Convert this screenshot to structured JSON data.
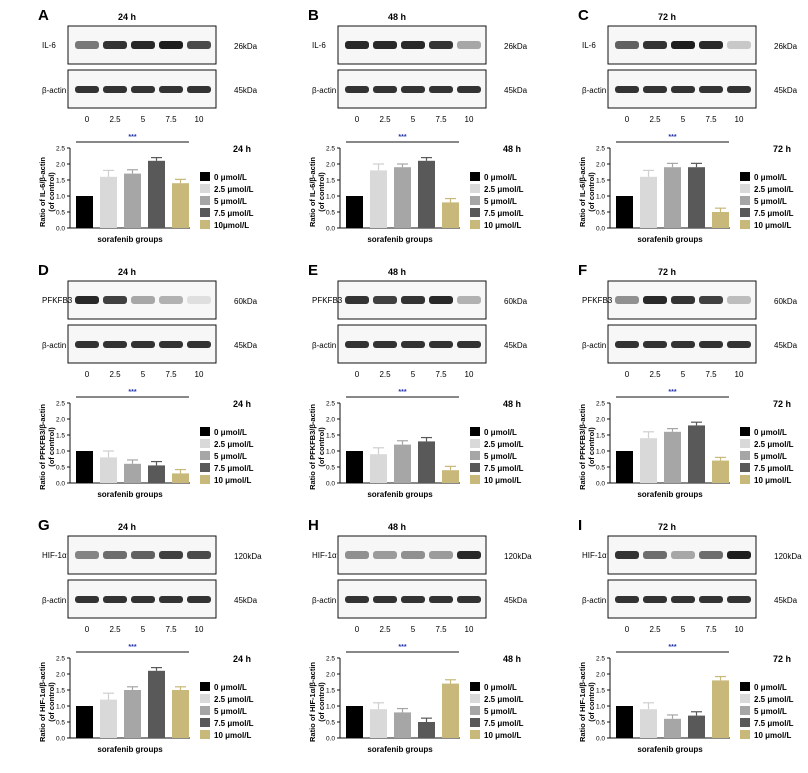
{
  "colors": [
    "#000000",
    "#d9d9d9",
    "#a6a6a6",
    "#595959",
    "#c8b87a"
  ],
  "band_colors": {
    "strong": "#111111",
    "faint": "#bdbdbd"
  },
  "common": {
    "ylabel_first_line": "(of control)",
    "xlabel": "sorafenib groups",
    "doses": [
      "0",
      "2.5",
      "5",
      "7.5",
      "10"
    ],
    "significance": "***",
    "loading_control": "β-actin",
    "loading_control_kda": "45kDa"
  },
  "chart_data": [
    {
      "panel": "A",
      "type": "bar",
      "blot_title": "24 h",
      "chart_title": "24 h",
      "protein": "IL-6",
      "kda": "26kDa",
      "ylabel": "Ratio of IL-6/β-actin",
      "xlabel": "sorafenib groups",
      "ylim": [
        0,
        2.5
      ],
      "yticks": [
        "0.0",
        "0.5",
        "1.0",
        "1.5",
        "2.0",
        "2.5"
      ],
      "categories": [
        "0 μmol/L",
        "2.5 μmol/L",
        "5 μmol/L",
        "7.5 μmol/L",
        "10μmol/L"
      ],
      "values": [
        1.0,
        1.6,
        1.7,
        2.1,
        1.4
      ],
      "errors": [
        0,
        0.2,
        0.12,
        0.1,
        0.12
      ],
      "band_intensity": [
        0.55,
        0.85,
        0.9,
        0.95,
        0.75
      ]
    },
    {
      "panel": "B",
      "type": "bar",
      "blot_title": "48 h",
      "chart_title": "48 h",
      "protein": "IL-6",
      "kda": "26kDa",
      "ylabel": "Ratio of IL-6/β-actin",
      "xlabel": "sorafenib groups",
      "ylim": [
        0,
        2.5
      ],
      "yticks": [
        "0.0",
        "0.5",
        "1.0",
        "1.5",
        "2.0",
        "2.5"
      ],
      "categories": [
        "0 μmol/L",
        "2.5 μmol/L",
        "5 μmol/L",
        "7.5 μmol/L",
        "10 μmol/L"
      ],
      "values": [
        1.0,
        1.8,
        1.9,
        2.1,
        0.8
      ],
      "errors": [
        0,
        0.2,
        0.1,
        0.1,
        0.12
      ],
      "band_intensity": [
        0.9,
        0.9,
        0.9,
        0.85,
        0.35
      ]
    },
    {
      "panel": "C",
      "type": "bar",
      "blot_title": "72 h",
      "chart_title": "72 h",
      "protein": "IL-6",
      "kda": "26kDa",
      "ylabel": "Ratio of IL-6/β-actin",
      "xlabel": "sorafenib groups",
      "ylim": [
        0,
        2.5
      ],
      "yticks": [
        "0.0",
        "0.5",
        "1.0",
        "1.5",
        "2.0",
        "2.5"
      ],
      "categories": [
        "0 μmol/L",
        "2.5 μmol/L",
        "5 μmol/L",
        "7.5 μmol/L",
        "10 μmol/L"
      ],
      "values": [
        1.0,
        1.6,
        1.9,
        1.9,
        0.5
      ],
      "errors": [
        0,
        0.2,
        0.12,
        0.12,
        0.12
      ],
      "band_intensity": [
        0.65,
        0.85,
        0.95,
        0.9,
        0.2
      ]
    },
    {
      "panel": "D",
      "type": "bar",
      "blot_title": "24 h",
      "chart_title": "24 h",
      "protein": "PFKFB3",
      "kda": "60kDa",
      "ylabel": "Ratio of PFKFB3/β-actin",
      "xlabel": "sorafenib groups",
      "ylim": [
        0,
        2.5
      ],
      "yticks": [
        "0.0",
        "0.5",
        "1.0",
        "1.5",
        "2.0",
        "2.5"
      ],
      "categories": [
        "0 μmol/L",
        "2.5 μmol/L",
        "5 μmol/L",
        "7.5 μmol/L",
        "10 μmol/L"
      ],
      "values": [
        1.0,
        0.8,
        0.6,
        0.55,
        0.3
      ],
      "errors": [
        0,
        0.2,
        0.12,
        0.12,
        0.12
      ],
      "band_intensity": [
        0.9,
        0.8,
        0.35,
        0.3,
        0.1
      ]
    },
    {
      "panel": "E",
      "type": "bar",
      "blot_title": "48 h",
      "chart_title": "48 h",
      "protein": "PFKFB3",
      "kda": "60kDa",
      "ylabel": "Ratio of PFKFB3/β-actin",
      "xlabel": "sorafenib groups",
      "ylim": [
        0,
        2.5
      ],
      "yticks": [
        "0.0",
        "0.5",
        "1.0",
        "1.5",
        "2.0",
        "2.5"
      ],
      "categories": [
        "0 μmol/L",
        "2.5 μmol/L",
        "5 μmol/L",
        "7.5 μmol/L",
        "10 μmol/L"
      ],
      "values": [
        1.0,
        0.9,
        1.2,
        1.3,
        0.4
      ],
      "errors": [
        0,
        0.2,
        0.12,
        0.12,
        0.12
      ],
      "band_intensity": [
        0.85,
        0.8,
        0.85,
        0.9,
        0.3
      ]
    },
    {
      "panel": "F",
      "type": "bar",
      "blot_title": "72 h",
      "chart_title": "72 h",
      "protein": "PFKFB3",
      "kda": "60kDa",
      "ylabel": "Ratio of PFKFB3/β-actin",
      "xlabel": "sorafenib groups",
      "ylim": [
        0,
        2.5
      ],
      "yticks": [
        "0.0",
        "0.5",
        "1.0",
        "1.5",
        "2.0",
        "2.5"
      ],
      "categories": [
        "0 μmol/L",
        "2.5 μmol/L",
        "5 μmol/L",
        "7.5 μmol/L",
        "10 μmol/L"
      ],
      "values": [
        1.0,
        1.4,
        1.6,
        1.8,
        0.7
      ],
      "errors": [
        0,
        0.2,
        0.1,
        0.1,
        0.1
      ],
      "band_intensity": [
        0.45,
        0.9,
        0.85,
        0.8,
        0.25
      ]
    },
    {
      "panel": "G",
      "type": "bar",
      "blot_title": "24 h",
      "chart_title": "24 h",
      "protein": "HIF-1α",
      "kda": "120kDa",
      "ylabel": "Ratio of HIF-1α/β-actin",
      "xlabel": "sorafenib groups",
      "ylim": [
        0,
        2.5
      ],
      "yticks": [
        "0.0",
        "0.5",
        "1.0",
        "1.5",
        "2.0",
        "2.5"
      ],
      "categories": [
        "0 μmol/L",
        "2.5 μmol/L",
        "5 μmol/L",
        "7.5 μmol/L",
        "10 μmol/L"
      ],
      "values": [
        1.0,
        1.2,
        1.5,
        2.1,
        1.5
      ],
      "errors": [
        0,
        0.2,
        0.1,
        0.1,
        0.1
      ],
      "band_intensity": [
        0.5,
        0.6,
        0.65,
        0.8,
        0.75
      ]
    },
    {
      "panel": "H",
      "type": "bar",
      "blot_title": "48 h",
      "chart_title": "48 h",
      "protein": "HIF-1α",
      "kda": "120kDa",
      "ylabel": "Ratio of HIF-1α/β-actin",
      "xlabel": "sorafenib groups",
      "ylim": [
        0,
        2.5
      ],
      "yticks": [
        "0.0",
        "0.5",
        "1.0",
        "1.5",
        "2.0",
        "2.5"
      ],
      "categories": [
        "0 μmol/L",
        "2.5 μmol/L",
        "5 μmol/L",
        "7.5 μmol/L",
        "10 μmol/L"
      ],
      "values": [
        1.0,
        0.9,
        0.8,
        0.5,
        1.7
      ],
      "errors": [
        0,
        0.2,
        0.12,
        0.12,
        0.12
      ],
      "band_intensity": [
        0.45,
        0.4,
        0.45,
        0.4,
        0.9
      ]
    },
    {
      "panel": "I",
      "type": "bar",
      "blot_title": "72 h",
      "chart_title": "72 h",
      "protein": "HIF-1α",
      "kda": "120kDa",
      "ylabel": "Ratio of HIF-1α/β-actin",
      "xlabel": "sorafenib groups",
      "ylim": [
        0,
        2.5
      ],
      "yticks": [
        "0.0",
        "0.5",
        "1.0",
        "1.5",
        "2.0",
        "2.5"
      ],
      "categories": [
        "0 μmol/L",
        "2.5 μmol/L",
        "5 μmol/L",
        "7.5 μmol/L",
        "10 μmol/L"
      ],
      "values": [
        1.0,
        0.9,
        0.6,
        0.7,
        1.8
      ],
      "errors": [
        0,
        0.2,
        0.12,
        0.12,
        0.12
      ],
      "band_intensity": [
        0.85,
        0.6,
        0.35,
        0.6,
        0.95
      ]
    }
  ]
}
